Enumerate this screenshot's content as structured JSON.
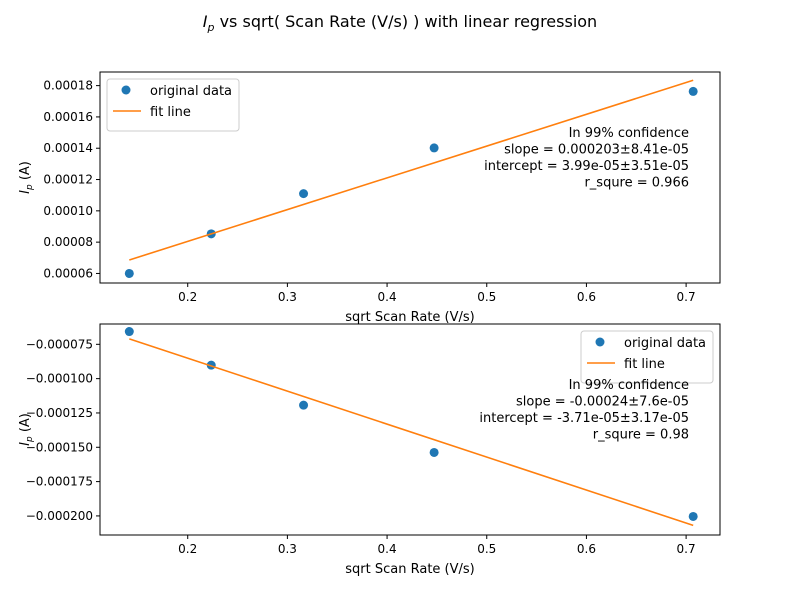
{
  "figure": {
    "suptitle_main": "I",
    "suptitle_sub": "p",
    "suptitle_rest": " vs sqrt( Scan Rate (V/s) ) with linear regression",
    "colors": {
      "data": "#1f77b4",
      "fit": "#ff7f0e",
      "axes": "#000000"
    }
  },
  "chart_data": [
    {
      "type": "scatter",
      "title": "",
      "xlabel": "sqrt Scan Rate (V/s)",
      "ylabel": "I_p (A)",
      "ylabel_main": "I",
      "ylabel_sub": "p",
      "ylabel_rest": " (A)",
      "xlim": [
        0.112,
        0.734
      ],
      "ylim": [
        5.39e-05,
        0.0001887
      ],
      "xticks": [
        0.2,
        0.3,
        0.4,
        0.5,
        0.6,
        0.7
      ],
      "xtick_labels": [
        "0.2",
        "0.3",
        "0.4",
        "0.5",
        "0.6",
        "0.7"
      ],
      "yticks": [
        6e-05,
        8e-05,
        0.0001,
        0.00012,
        0.00014,
        0.00016,
        0.00018
      ],
      "ytick_labels": [
        "0.00006",
        "0.00008",
        "0.00010",
        "0.00012",
        "0.00014",
        "0.00016",
        "0.00018"
      ],
      "series": [
        {
          "name": "original data",
          "kind": "scatter",
          "x": [
            0.1414,
            0.2236,
            0.3162,
            0.4472,
            0.7071
          ],
          "y": [
            6e-05,
            8.53e-05,
            0.000111,
            0.0001402,
            0.0001763
          ]
        },
        {
          "name": "fit line",
          "kind": "line",
          "x": [
            0.1414,
            0.7071
          ],
          "y": [
            6.86e-05,
            0.0001834
          ]
        }
      ],
      "legend": {
        "placement": "top-left"
      },
      "annotation": [
        "In 99% confidence",
        "slope = 0.000203±8.41e-05",
        "intercept = 3.99e-05±3.51e-05",
        "r_squre = 0.966"
      ]
    },
    {
      "type": "scatter",
      "title": "",
      "xlabel": "sqrt Scan Rate (V/s)",
      "ylabel": "I_p (A)",
      "ylabel_main": "I",
      "ylabel_sub": "p",
      "ylabel_rest": " (A)",
      "xlim": [
        0.112,
        0.734
      ],
      "ylim": [
        -0.0002139,
        -6.02e-05
      ],
      "xticks": [
        0.2,
        0.3,
        0.4,
        0.5,
        0.6,
        0.7
      ],
      "xtick_labels": [
        "0.2",
        "0.3",
        "0.4",
        "0.5",
        "0.6",
        "0.7"
      ],
      "yticks": [
        -7.5e-05,
        -0.0001,
        -0.000125,
        -0.00015,
        -0.000175,
        -0.0002
      ],
      "ytick_labels": [
        "−0.000075",
        "−0.000100",
        "−0.000125",
        "−0.000150",
        "−0.000175",
        "−0.000200"
      ],
      "series": [
        {
          "name": "original data",
          "kind": "scatter",
          "x": [
            0.1414,
            0.2236,
            0.3162,
            0.4472,
            0.7071
          ],
          "y": [
            -6.57e-05,
            -9.02e-05,
            -0.0001193,
            -0.0001538,
            -0.0002004
          ]
        },
        {
          "name": "fit line",
          "kind": "line",
          "x": [
            0.1414,
            0.7071
          ],
          "y": [
            -7.1e-05,
            -0.0002069
          ]
        }
      ],
      "legend": {
        "placement": "top-right"
      },
      "annotation": [
        "In 99% confidence",
        "slope = -0.00024±7.6e-05",
        "intercept = -3.71e-05±3.17e-05",
        "r_squre = 0.98"
      ]
    }
  ]
}
